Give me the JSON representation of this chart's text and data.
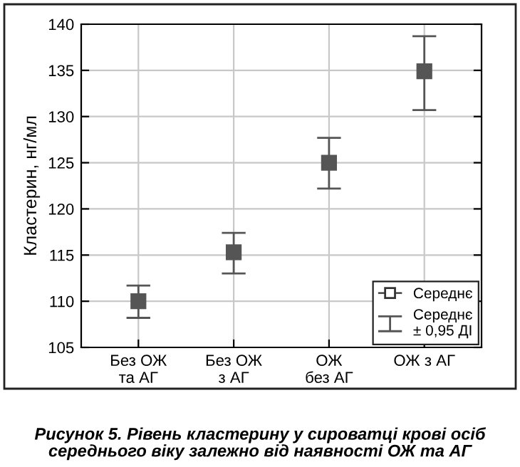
{
  "chart_data": {
    "type": "scatter",
    "title": "Рисунок 5. Рівень кластерину у сироватці крові осіб середнього віку залежно від наявності ОЖ та АГ",
    "ylabel": "Кластерин, нг/мл",
    "categories": [
      "Без ОЖ\nта АГ",
      "Без ОЖ\nз АГ",
      "ОЖ\nбез АГ",
      "ОЖ з АГ"
    ],
    "series": [
      {
        "name": "Середнє",
        "color": "#555555",
        "values": [
          110.0,
          115.3,
          125.0,
          134.9
        ],
        "errors": [
          [
            108.2,
            111.7
          ],
          [
            113.0,
            117.4
          ],
          [
            122.2,
            127.7
          ],
          [
            130.7,
            138.7
          ]
        ]
      }
    ],
    "annotations": [
      "Середнє\n± 0,95 ДІ"
    ],
    "ylim": [
      105,
      140
    ],
    "yticks": [
      105,
      110,
      115,
      120,
      125,
      130,
      135,
      140
    ],
    "grid": true,
    "legend": "bottom right",
    "marker": "square"
  }
}
